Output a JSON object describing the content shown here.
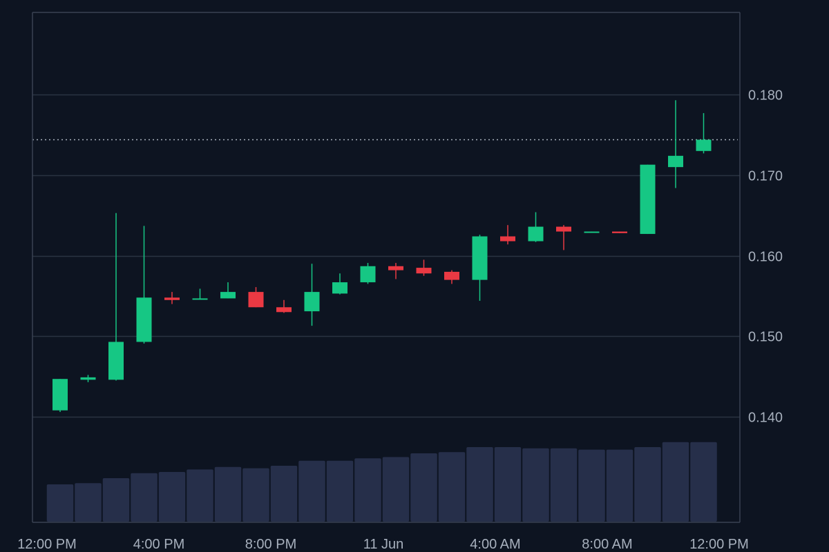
{
  "chart_data": {
    "type": "candlestick",
    "x_tick_labels": [
      "12:00 PM",
      "4:00 PM",
      "8:00 PM",
      "11 Jun",
      "4:00 AM",
      "8:00 AM",
      "12:00 PM"
    ],
    "y_tick_labels": [
      "0.140",
      "0.150",
      "0.160",
      "0.170",
      "0.180"
    ],
    "y_ticks": [
      0.14,
      0.15,
      0.16,
      0.17,
      0.18
    ],
    "ylim": [
      0.1269,
      0.1902
    ],
    "current_price": 0.1744,
    "grid": true,
    "colors": {
      "background": "#0d1421",
      "up": "#16c784",
      "down": "#ea3943",
      "volume": "#262f4a",
      "grid": "#2a3342",
      "axis": "#3a4252",
      "tick_label": "#a7b0bd",
      "price_line": "#aab2bf"
    },
    "candles": [
      {
        "time": "12:00 PM",
        "open": 0.1408,
        "high": 0.1447,
        "low": 0.1406,
        "close": 0.1447
      },
      {
        "time": "1:00 PM",
        "open": 0.1446,
        "high": 0.1452,
        "low": 0.1443,
        "close": 0.1449
      },
      {
        "time": "2:00 PM",
        "open": 0.1446,
        "high": 0.1653,
        "low": 0.1445,
        "close": 0.1493
      },
      {
        "time": "3:00 PM",
        "open": 0.1493,
        "high": 0.1637,
        "low": 0.1491,
        "close": 0.1548
      },
      {
        "time": "4:00 PM",
        "open": 0.1548,
        "high": 0.1555,
        "low": 0.154,
        "close": 0.1545
      },
      {
        "time": "5:00 PM",
        "open": 0.1546,
        "high": 0.1559,
        "low": 0.1546,
        "close": 0.1547
      },
      {
        "time": "6:00 PM",
        "open": 0.1547,
        "high": 0.1567,
        "low": 0.1547,
        "close": 0.1555
      },
      {
        "time": "7:00 PM",
        "open": 0.1555,
        "high": 0.1561,
        "low": 0.1536,
        "close": 0.1536
      },
      {
        "time": "8:00 PM",
        "open": 0.1536,
        "high": 0.1545,
        "low": 0.1529,
        "close": 0.153
      },
      {
        "time": "9:00 PM",
        "open": 0.1531,
        "high": 0.159,
        "low": 0.1513,
        "close": 0.1555
      },
      {
        "time": "10:00 PM",
        "open": 0.1553,
        "high": 0.1578,
        "low": 0.1552,
        "close": 0.1567
      },
      {
        "time": "11:00 PM",
        "open": 0.1567,
        "high": 0.1591,
        "low": 0.1565,
        "close": 0.1587
      },
      {
        "time": "11 Jun",
        "open": 0.1587,
        "high": 0.1591,
        "low": 0.1571,
        "close": 0.1582
      },
      {
        "time": "1:00 AM",
        "open": 0.1585,
        "high": 0.1595,
        "low": 0.1575,
        "close": 0.1578
      },
      {
        "time": "2:00 AM",
        "open": 0.158,
        "high": 0.1582,
        "low": 0.1565,
        "close": 0.157
      },
      {
        "time": "3:00 AM",
        "open": 0.157,
        "high": 0.1626,
        "low": 0.1544,
        "close": 0.1624
      },
      {
        "time": "4:00 AM",
        "open": 0.1624,
        "high": 0.1638,
        "low": 0.1614,
        "close": 0.1618
      },
      {
        "time": "5:00 AM",
        "open": 0.1618,
        "high": 0.1654,
        "low": 0.1617,
        "close": 0.1636
      },
      {
        "time": "6:00 AM",
        "open": 0.1636,
        "high": 0.1638,
        "low": 0.1607,
        "close": 0.163
      },
      {
        "time": "7:00 AM",
        "open": 0.163,
        "high": 0.163,
        "low": 0.1629,
        "close": 0.163
      },
      {
        "time": "8:00 AM",
        "open": 0.163,
        "high": 0.163,
        "low": 0.1628,
        "close": 0.1628
      },
      {
        "time": "9:00 AM",
        "open": 0.1627,
        "high": 0.1713,
        "low": 0.1627,
        "close": 0.1713
      },
      {
        "time": "10:00 AM",
        "open": 0.171,
        "high": 0.1793,
        "low": 0.1684,
        "close": 0.1724
      },
      {
        "time": "11:00 AM",
        "open": 0.173,
        "high": 0.1777,
        "low": 0.1727,
        "close": 0.1744
      }
    ],
    "volume": [
      60,
      62,
      70,
      78,
      80,
      84,
      88,
      86,
      90,
      98,
      98,
      102,
      104,
      110,
      112,
      120,
      120,
      118,
      118,
      116,
      116,
      120,
      128,
      128
    ]
  }
}
